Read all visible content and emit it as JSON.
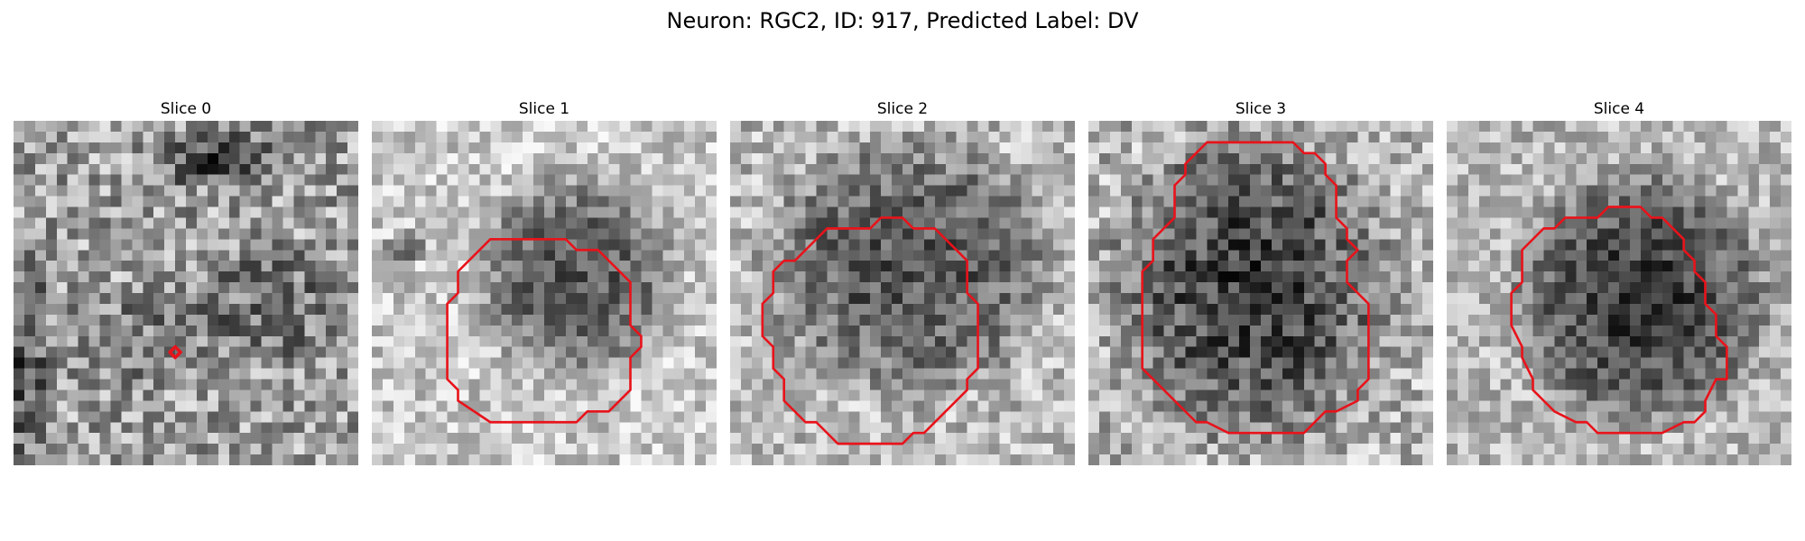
{
  "figure": {
    "title": "Neuron: RGC2, ID: 917, Predicted Label: DV"
  },
  "colors": {
    "outline": "#e8131b",
    "background": "#ffffff"
  },
  "slices": [
    {
      "label": "Slice 0",
      "outline": "marker"
    },
    {
      "label": "Slice 1",
      "outline": "polygon"
    },
    {
      "label": "Slice 2",
      "outline": "polygon"
    },
    {
      "label": "Slice 3",
      "outline": "polygon"
    },
    {
      "label": "Slice 4",
      "outline": "polygon"
    }
  ]
}
